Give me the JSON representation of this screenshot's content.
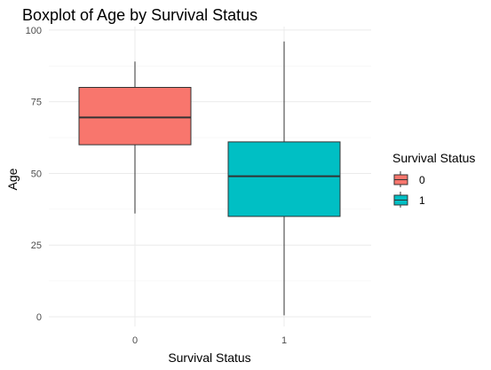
{
  "chart_data": {
    "type": "boxplot",
    "title": "Boxplot of Age by Survival Status",
    "xlabel": "Survival Status",
    "ylabel": "Age",
    "categories": [
      "0",
      "1"
    ],
    "ylim": [
      0,
      100
    ],
    "yticks": [
      0,
      25,
      50,
      75,
      100
    ],
    "grid": true,
    "legend": {
      "title": "Survival Status",
      "position": "right"
    },
    "series": [
      {
        "name": "0",
        "color": "#F8766D",
        "min": 36,
        "q1": 60,
        "median": 69.5,
        "q3": 80,
        "max": 89
      },
      {
        "name": "1",
        "color": "#00BFC4",
        "min": 0.5,
        "q1": 35,
        "median": 49,
        "q3": 61,
        "max": 96
      }
    ]
  }
}
